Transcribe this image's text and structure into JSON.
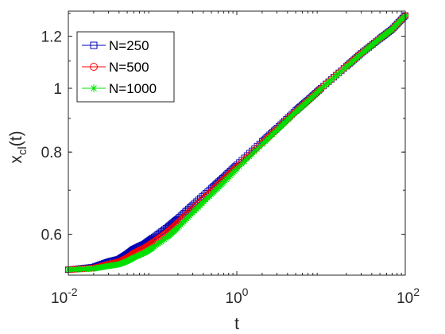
{
  "chart_data": {
    "type": "line",
    "xscale": "log",
    "yscale": "log",
    "xlim": [
      0.01,
      100
    ],
    "ylim": [
      0.52,
      1.31
    ],
    "xlabel": "t",
    "ylabel_main": "x",
    "ylabel_sub": "cl",
    "ylabel_tail": "(t)",
    "x_ticks": [
      {
        "value": 0.01,
        "base": "10",
        "exp": "-2"
      },
      {
        "value": 1,
        "base": "10",
        "exp": "0"
      },
      {
        "value": 100,
        "base": "10",
        "exp": "2"
      }
    ],
    "y_ticks": [
      {
        "value": 0.6,
        "label": "0.6"
      },
      {
        "value": 0.8,
        "label": "0.8"
      },
      {
        "value": 1.0,
        "label": "1"
      },
      {
        "value": 1.2,
        "label": "1.2"
      }
    ],
    "grid": false,
    "legend_position": "top-left",
    "series": [
      {
        "name": "N=250",
        "color": "#0000b3",
        "marker": "square",
        "x": [
          0.01,
          0.02,
          0.03,
          0.04,
          0.05,
          0.06,
          0.08,
          0.1,
          0.15,
          0.2,
          0.3,
          0.5,
          0.7,
          1,
          2,
          3,
          5,
          7,
          10,
          20,
          30,
          50,
          70,
          100
        ],
        "y": [
          0.53,
          0.535,
          0.545,
          0.55,
          0.56,
          0.57,
          0.58,
          0.592,
          0.615,
          0.634,
          0.665,
          0.705,
          0.733,
          0.765,
          0.83,
          0.87,
          0.925,
          0.96,
          1.0,
          1.08,
          1.13,
          1.19,
          1.23,
          1.29
        ]
      },
      {
        "name": "N=500",
        "color": "#ff0000",
        "marker": "circle",
        "x": [
          0.01,
          0.02,
          0.03,
          0.04,
          0.05,
          0.06,
          0.08,
          0.1,
          0.15,
          0.2,
          0.3,
          0.5,
          0.7,
          1,
          2,
          3,
          5,
          7,
          10,
          20,
          30,
          50,
          70,
          100
        ],
        "y": [
          0.53,
          0.533,
          0.54,
          0.545,
          0.553,
          0.562,
          0.572,
          0.583,
          0.605,
          0.625,
          0.657,
          0.698,
          0.727,
          0.76,
          0.826,
          0.867,
          0.922,
          0.958,
          1.0,
          1.08,
          1.13,
          1.19,
          1.23,
          1.29
        ]
      },
      {
        "name": "N=1000",
        "color": "#00e000",
        "marker": "asterisk",
        "x": [
          0.01,
          0.02,
          0.03,
          0.04,
          0.05,
          0.06,
          0.08,
          0.1,
          0.15,
          0.2,
          0.3,
          0.5,
          0.7,
          1,
          2,
          3,
          5,
          7,
          10,
          20,
          30,
          50,
          70,
          100
        ],
        "y": [
          0.53,
          0.532,
          0.537,
          0.54,
          0.546,
          0.553,
          0.562,
          0.572,
          0.594,
          0.614,
          0.647,
          0.69,
          0.72,
          0.754,
          0.822,
          0.864,
          0.92,
          0.956,
          0.998,
          1.078,
          1.128,
          1.19,
          1.23,
          1.29
        ]
      }
    ]
  }
}
